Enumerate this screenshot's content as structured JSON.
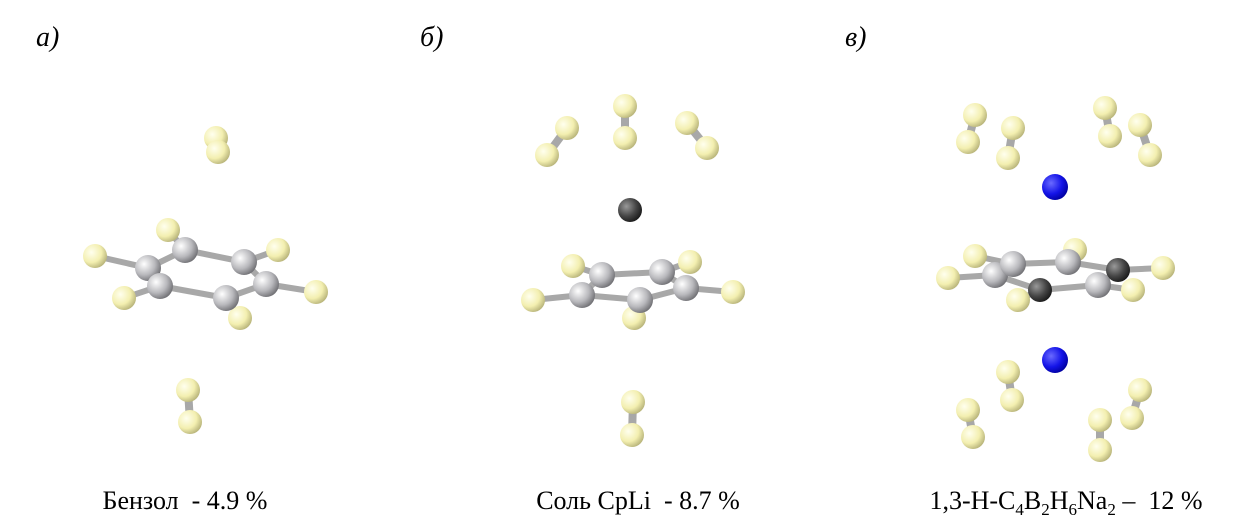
{
  "panels": [
    {
      "label": "а)",
      "caption": [
        {
          "text": "Бензол  - 4.9 %"
        }
      ]
    },
    {
      "label": "б)",
      "caption": [
        {
          "text": "Соль CpLi  - 8.7 %"
        }
      ]
    },
    {
      "label": "в)",
      "caption": [
        {
          "text": "1,3-H-C"
        },
        {
          "sub": "4"
        },
        {
          "text": "B"
        },
        {
          "sub": "2"
        },
        {
          "text": "H"
        },
        {
          "sub": "6"
        },
        {
          "text": "Na"
        },
        {
          "sub": "2"
        },
        {
          "text": " –  12 %"
        }
      ]
    }
  ]
}
